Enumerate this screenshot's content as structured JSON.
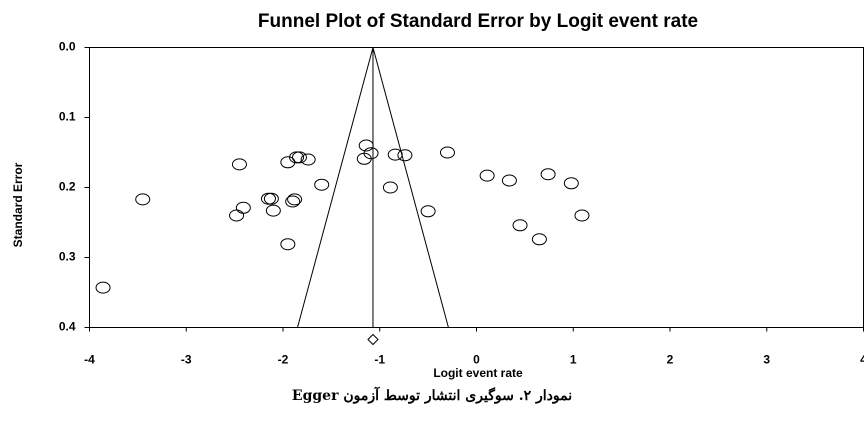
{
  "chart_data": {
    "type": "scatter",
    "title": "Funnel Plot of Standard Error by Logit event rate",
    "x_label": "Logit event rate",
    "y_label": "Standard Error",
    "caption": "نمودار ۲. سوگیری انتشار توسط آزمون Egger",
    "x": [
      -3.86,
      -3.45,
      -2.45,
      -2.41,
      -2.48,
      -2.15,
      -2.12,
      -2.1,
      -1.95,
      -1.86,
      -1.83,
      -1.88,
      -1.9,
      -1.95,
      -1.74,
      -1.6,
      -1.14,
      -1.16,
      -1.09,
      -0.89,
      -0.84,
      -0.74,
      -0.5,
      -0.3,
      0.11,
      0.34,
      0.45,
      0.65,
      0.74,
      0.98,
      1.09
    ],
    "values": [
      0.343,
      0.217,
      0.167,
      0.229,
      0.24,
      0.216,
      0.216,
      0.233,
      0.164,
      0.157,
      0.157,
      0.217,
      0.22,
      0.281,
      0.16,
      0.196,
      0.14,
      0.159,
      0.151,
      0.2,
      0.153,
      0.154,
      0.234,
      0.15,
      0.183,
      0.19,
      0.254,
      0.274,
      0.181,
      0.194,
      0.24
    ],
    "color": "#000000",
    "funnel": {
      "apex": [
        -1.07,
        0
      ],
      "left": [
        -1.85,
        0.4
      ],
      "right": [
        -0.29,
        0.4
      ]
    },
    "summary": -1.07,
    "xlim": [
      -4,
      4
    ],
    "xticks": [
      -4,
      -3,
      -2,
      -1,
      0,
      1,
      2,
      3,
      4
    ],
    "ylim": [
      0,
      0.4
    ],
    "y_inverted": true,
    "yticks": [
      {
        "value": 0,
        "label": "0.0"
      },
      0.1,
      0.2,
      0.3,
      0.4
    ]
  }
}
